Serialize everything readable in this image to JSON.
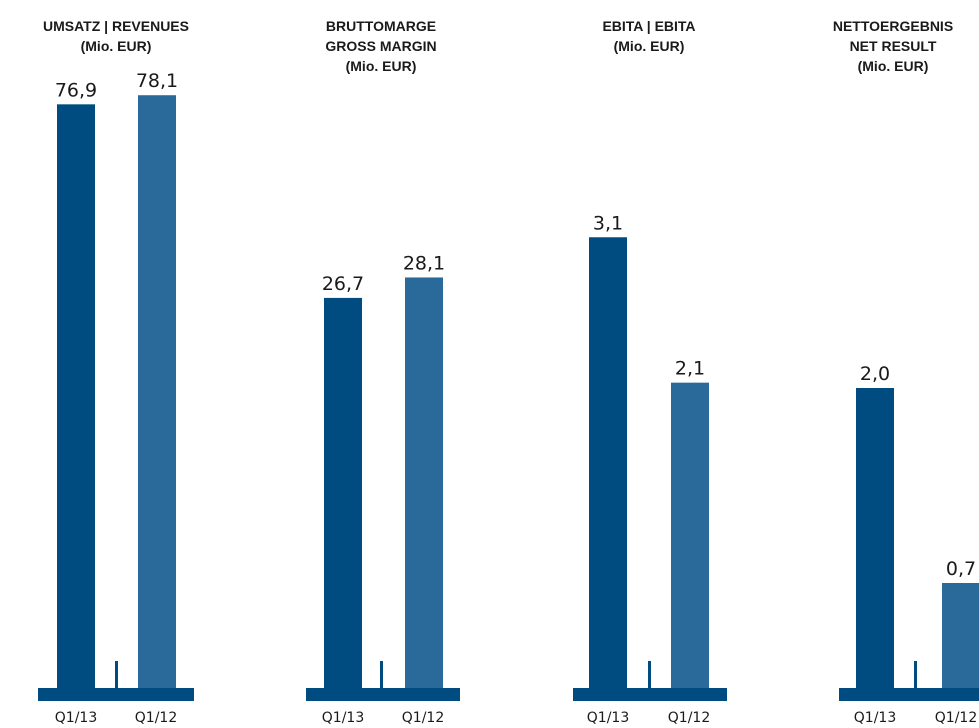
{
  "colors": {
    "current_year_bar": "#004b80",
    "previous_year_bar": "#2a6a9b",
    "baseline": "#004b80",
    "text": "#1a1a1a"
  },
  "chart_data": [
    {
      "type": "bar",
      "title": [
        "UMSATZ | REVENUES",
        "(Mio. EUR)"
      ],
      "categories": [
        "Q1/13",
        "Q1/12"
      ],
      "values": [
        76.9,
        78.1
      ],
      "value_labels": [
        "76,9",
        "78,1"
      ],
      "ylim": [
        0,
        80
      ],
      "grid": false,
      "legend": "none"
    },
    {
      "type": "bar",
      "title": [
        "BRUTTOMARGE",
        "GROSS MARGIN",
        "(Mio. EUR)"
      ],
      "categories": [
        "Q1/13",
        "Q1/12"
      ],
      "values": [
        26.7,
        28.1
      ],
      "value_labels": [
        "26,7",
        "28,1"
      ],
      "ylim": [
        0,
        42
      ],
      "grid": false,
      "legend": "none"
    },
    {
      "type": "bar",
      "title": [
        "EBITA | EBITA",
        "(Mio. EUR)"
      ],
      "categories": [
        "Q1/13",
        "Q1/12"
      ],
      "values": [
        3.1,
        2.1
      ],
      "value_labels": [
        "3,1",
        "2,1"
      ],
      "ylim": [
        0,
        4.2
      ],
      "grid": false,
      "legend": "none"
    },
    {
      "type": "bar",
      "title": [
        "NETTOERGEBNIS",
        "NET RESULT",
        "(Mio. EUR)"
      ],
      "categories": [
        "Q1/13",
        "Q1/12"
      ],
      "values": [
        2.0,
        0.7
      ],
      "value_labels": [
        "2,0",
        "0,7"
      ],
      "ylim": [
        0,
        3.2
      ],
      "grid": false,
      "legend": "none"
    }
  ]
}
